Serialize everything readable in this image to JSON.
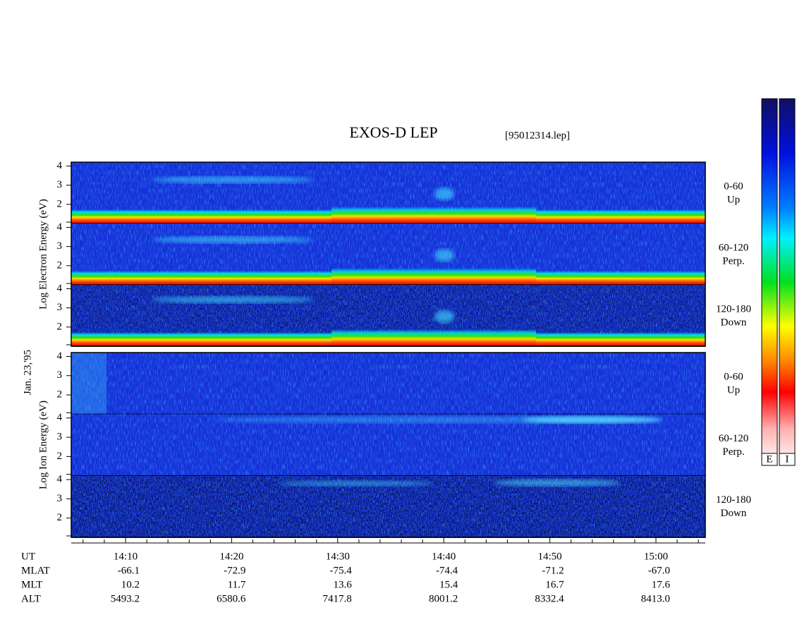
{
  "chart_data": {
    "type": "spectrogram",
    "title": "EXOS-D LEP",
    "file": "[95012314.lep]",
    "date_label": "Jan. 23,'95",
    "groups": [
      {
        "label": "Log Electron Energy (eV)",
        "species": "electron",
        "panels": [
          {
            "label": [
              "0-60",
              "Up"
            ]
          },
          {
            "label": [
              "60-120",
              "Perp."
            ]
          },
          {
            "label": [
              "120-180",
              "Down"
            ]
          }
        ]
      },
      {
        "label": "Log Ion Energy (eV)",
        "species": "ion",
        "panels": [
          {
            "label": [
              "0-60",
              "Up"
            ]
          },
          {
            "label": [
              "60-120",
              "Perp."
            ]
          },
          {
            "label": [
              "120-180",
              "Down"
            ]
          }
        ]
      }
    ],
    "ylim": [
      1,
      4.2
    ],
    "yticks": [
      2,
      3,
      4
    ],
    "x_name": "UT",
    "categories": [
      "14:10",
      "14:20",
      "14:30",
      "14:40",
      "14:50",
      "15:00"
    ],
    "rows": [
      {
        "name": "MLAT",
        "values": [
          -66.1,
          -72.9,
          -75.4,
          -74.4,
          -71.2,
          {
            "value": -67,
            "label": "-67.0"
          }
        ]
      },
      {
        "name": "MLT",
        "values": [
          10.2,
          11.7,
          13.6,
          15.4,
          16.7,
          17.6
        ]
      },
      {
        "name": "ALT",
        "values": [
          5493.2,
          6580.6,
          7417.8,
          8001.2,
          8332.4,
          {
            "value": 8413,
            "label": "8413.0"
          }
        ]
      }
    ],
    "colorbars": [
      "E",
      "I"
    ]
  }
}
